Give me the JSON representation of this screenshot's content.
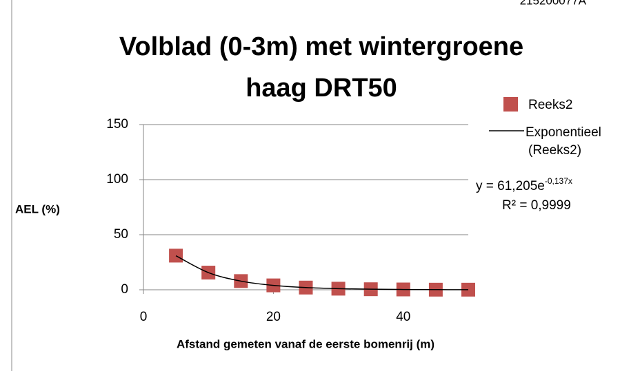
{
  "corner_text": "215200077A",
  "chart_data": {
    "type": "scatter",
    "title_lines": [
      "Volblad (0-3m) met wintergroene",
      "haag DRT50"
    ],
    "x_label": "Afstand gemeten vanaf de eerste bomenrij (m)",
    "y_label": "AEL (%)",
    "xlim": [
      0,
      50
    ],
    "xticks": [
      0,
      20,
      40
    ],
    "ylim": [
      0,
      150
    ],
    "yticks": [
      0,
      50,
      100,
      150
    ],
    "grid": true,
    "series": [
      {
        "name": "Reeks2",
        "color": "#c0504d",
        "x": [
          5,
          10,
          15,
          20,
          25,
          30,
          35,
          40,
          45,
          50
        ],
        "values": [
          31,
          15.6,
          7.9,
          4,
          2,
          1,
          0.5,
          0.3,
          0.1,
          0.1
        ]
      }
    ],
    "trendline": {
      "name_lines": [
        "Exponentieel",
        "(Reeks2)"
      ],
      "color": "#000000",
      "x": [
        5,
        10,
        15,
        20,
        25,
        30,
        35,
        40,
        45,
        50
      ],
      "values": [
        30.9,
        15.6,
        7.86,
        3.97,
        2.0,
        1.01,
        0.51,
        0.26,
        0.13,
        0.065
      ],
      "equation_base": "y = 61,205e",
      "equation_exponent": "-0,137x",
      "r_squared": "R² = 0,9999"
    }
  }
}
